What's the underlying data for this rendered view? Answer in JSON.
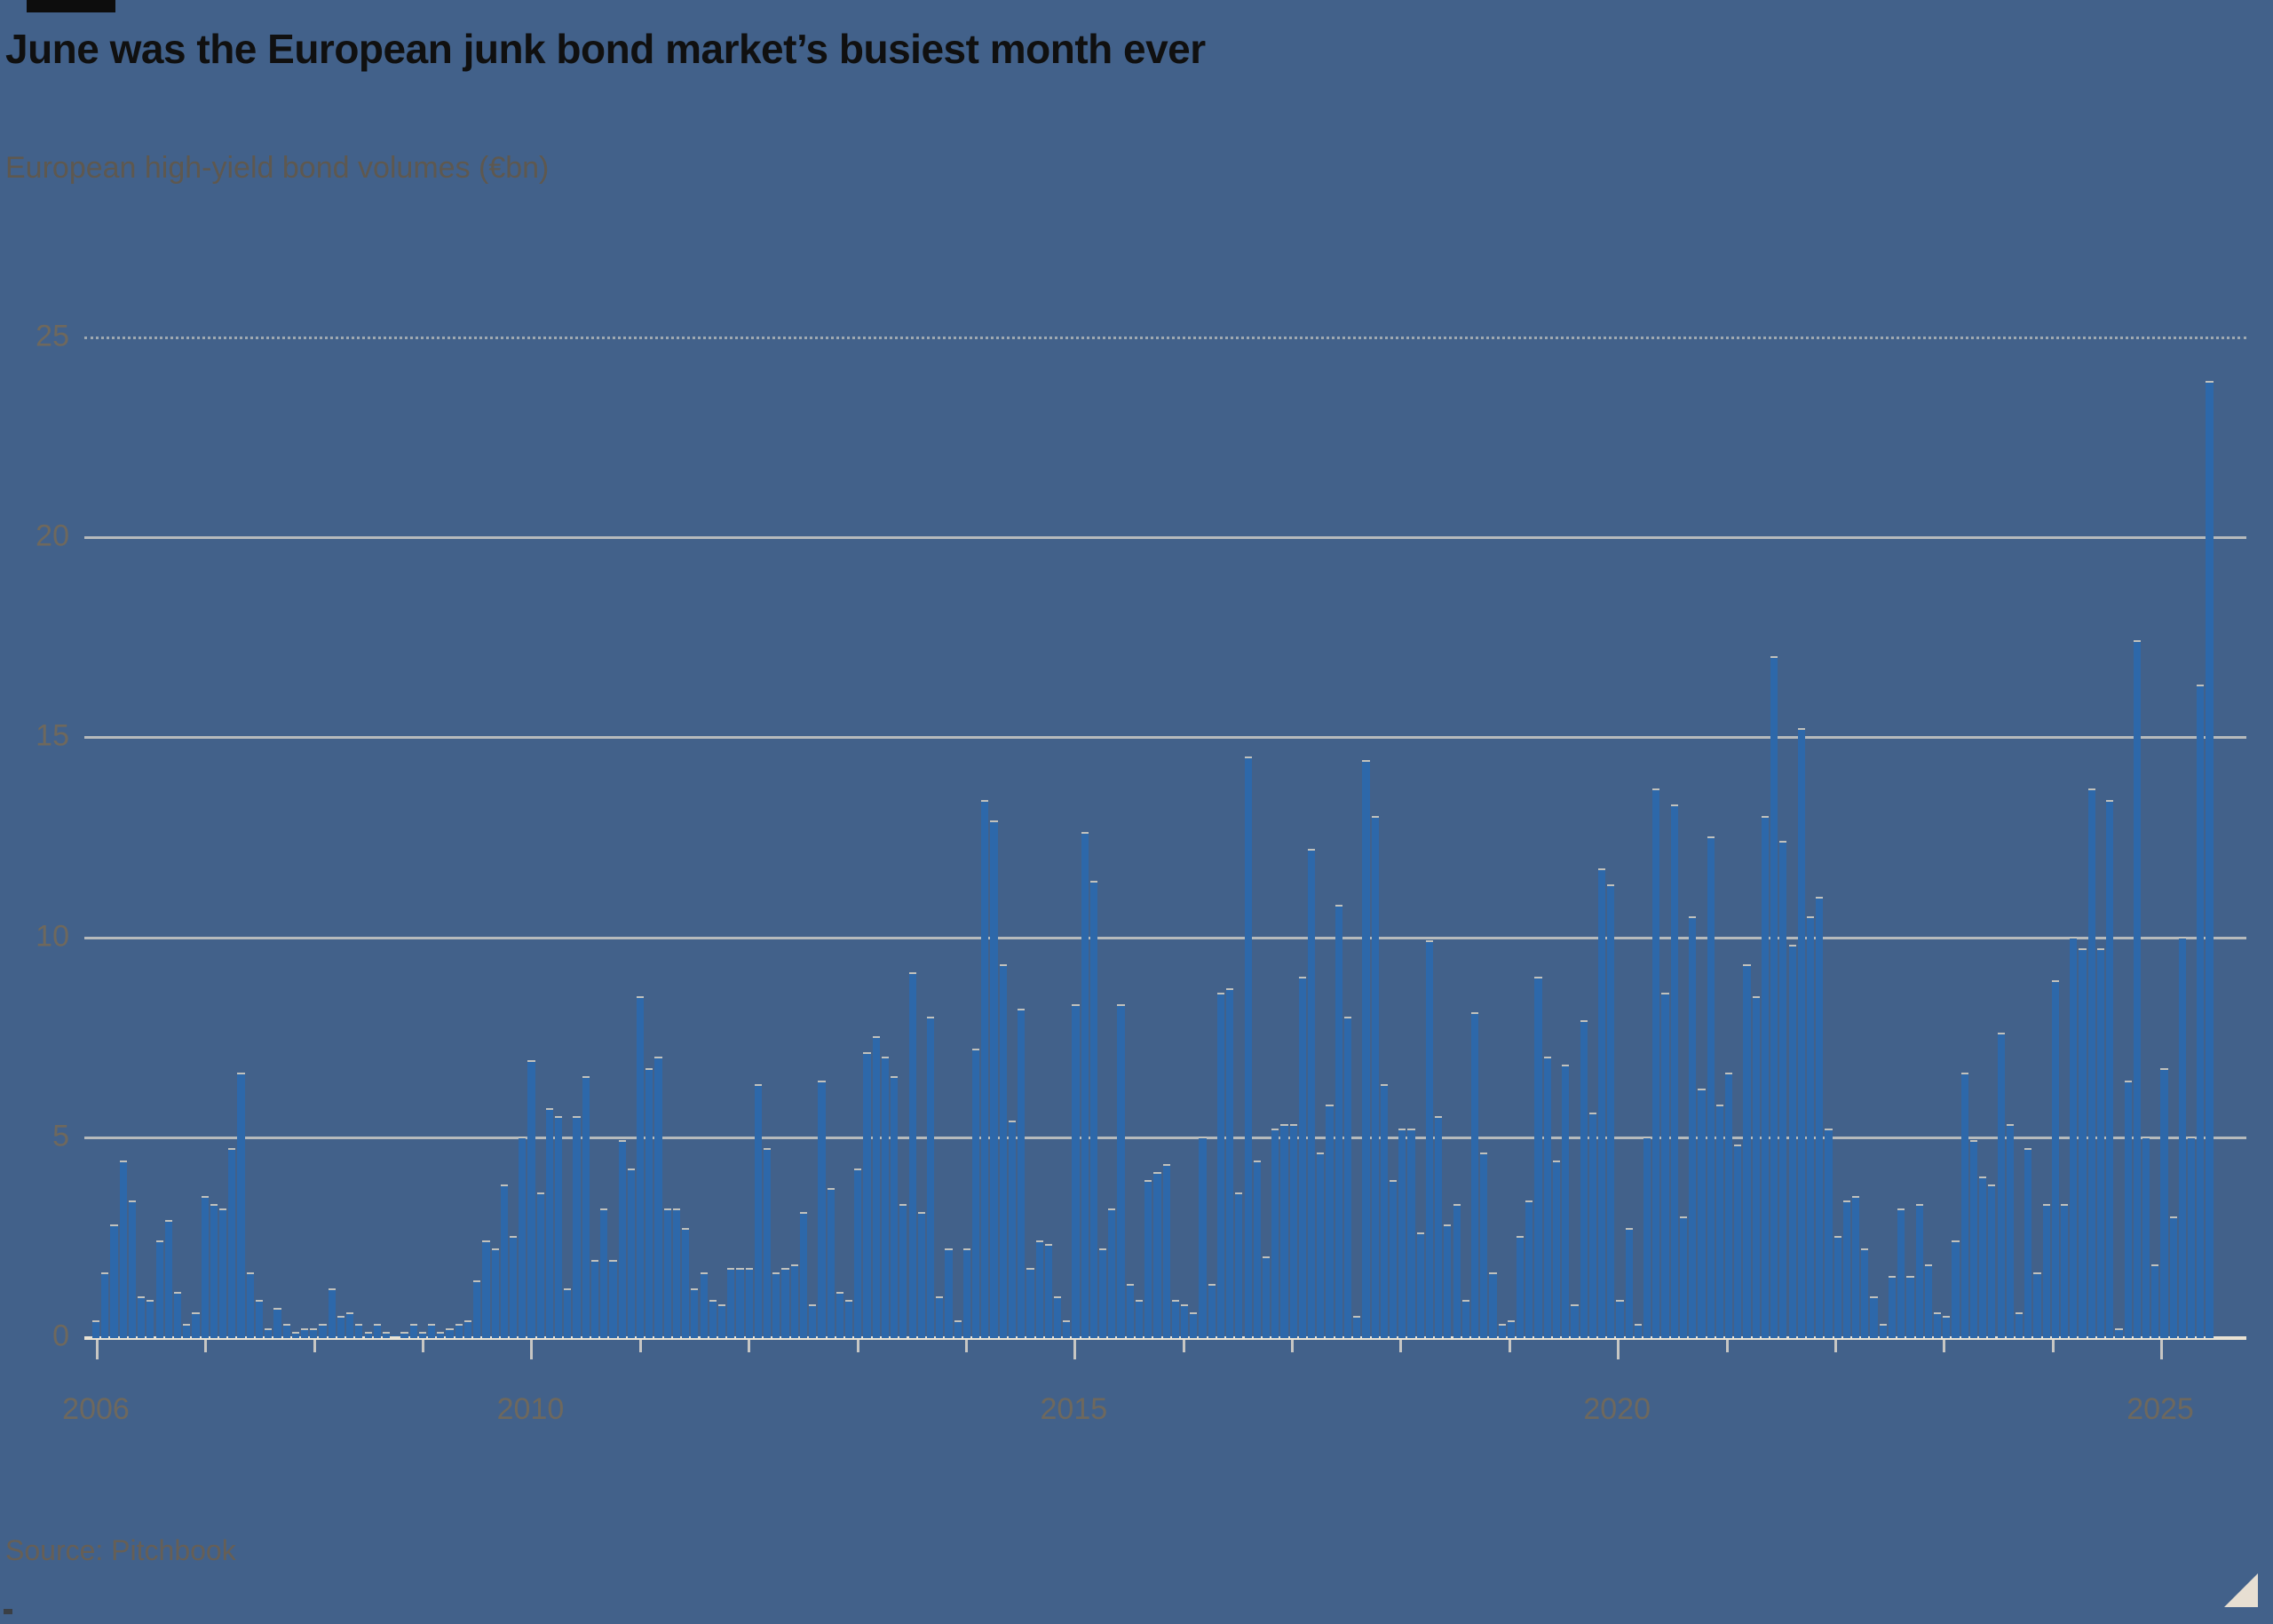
{
  "header": {
    "black_tag": "",
    "title": "June was the European junk bond market’s busiest month ever",
    "subtitle": "European high-yield bond volumes (€bn)"
  },
  "source": {
    "label": "Source: Pitchbook"
  },
  "colors": {
    "background": "#42618A",
    "bar": "#2D68AA",
    "bar_cap": "#D1CBBE",
    "gridline": "#DED8CC",
    "axis_line": "#E9E2D3",
    "title": "#101010",
    "subtitle": "#5E584F",
    "tick_label": "#6E685D",
    "source": "#665F56",
    "resize_corner": "#E7DFD2",
    "tag": "#0D0D0D"
  },
  "chart_data": {
    "type": "bar",
    "title": "June was the European junk bond market’s busiest month ever",
    "subtitle": "European high-yield bond volumes (€bn)",
    "unit": "€bn",
    "ylabel": "European high-yield bond volumes (€bn)",
    "xlabel": "",
    "ylim": [
      0,
      25
    ],
    "y_tick_values": [
      0,
      5,
      10,
      15,
      20,
      25
    ],
    "x_tick_years_labeled": [
      2006,
      2010,
      2015,
      2020,
      2025
    ],
    "x_range": {
      "start": "2006-01",
      "end": "2025-06"
    },
    "grid": true,
    "legend": "none",
    "series": [
      {
        "name": "European high-yield bond volumes (€bn)",
        "years": [
          {
            "year": 2006,
            "values": [
              0.4,
              1.6,
              2.8,
              4.4,
              3.4,
              1.0,
              0.9,
              2.4,
              2.9,
              1.1,
              0.3,
              0.6
            ]
          },
          {
            "year": 2007,
            "values": [
              3.5,
              3.3,
              3.2,
              4.7,
              6.6,
              1.6,
              0.9,
              0.2,
              0.7,
              0.3,
              0.1,
              0.2
            ]
          },
          {
            "year": 2008,
            "values": [
              0.2,
              0.3,
              1.2,
              0.5,
              0.6,
              0.3,
              0.1,
              0.3,
              0.1,
              0.0,
              0.1,
              0.3
            ]
          },
          {
            "year": 2009,
            "values": [
              0.1,
              0.3,
              0.1,
              0.2,
              0.3,
              0.4,
              1.4,
              2.4,
              2.2,
              3.8,
              2.5,
              5.0
            ]
          },
          {
            "year": 2010,
            "values": [
              6.9,
              3.6,
              5.7,
              5.5,
              1.2,
              5.5,
              6.5,
              1.9,
              3.2,
              1.9,
              4.9,
              4.2
            ]
          },
          {
            "year": 2011,
            "values": [
              8.5,
              6.7,
              7.0,
              3.2,
              3.2,
              2.7,
              1.2,
              1.6,
              0.9,
              0.8,
              1.7,
              1.7
            ]
          },
          {
            "year": 2012,
            "values": [
              1.7,
              6.3,
              4.7,
              1.6,
              1.7,
              1.8,
              3.1,
              0.8,
              6.4,
              3.7,
              1.1,
              0.9
            ]
          },
          {
            "year": 2013,
            "values": [
              4.2,
              7.1,
              7.5,
              7.0,
              6.5,
              3.3,
              9.1,
              3.1,
              8.0,
              1.0,
              2.2,
              0.4
            ]
          },
          {
            "year": 2014,
            "values": [
              2.2,
              7.2,
              13.4,
              12.9,
              9.3,
              5.4,
              8.2,
              1.7,
              2.4,
              2.3,
              1.0,
              0.4
            ]
          },
          {
            "year": 2015,
            "values": [
              8.3,
              12.6,
              11.4,
              2.2,
              3.2,
              8.3,
              1.3,
              0.9,
              3.9,
              4.1,
              4.3,
              0.9
            ]
          },
          {
            "year": 2016,
            "values": [
              0.8,
              0.6,
              5.0,
              1.3,
              8.6,
              8.7,
              3.6,
              14.5,
              4.4,
              2.0,
              5.2,
              5.3
            ]
          },
          {
            "year": 2017,
            "values": [
              5.3,
              9.0,
              12.2,
              4.6,
              5.8,
              10.8,
              8.0,
              0.5,
              14.4,
              13.0,
              6.3,
              3.9
            ]
          },
          {
            "year": 2018,
            "values": [
              5.2,
              5.2,
              2.6,
              9.9,
              5.5,
              2.8,
              3.3,
              0.9,
              8.1,
              4.6,
              1.6,
              0.3
            ]
          },
          {
            "year": 2019,
            "values": [
              0.4,
              2.5,
              3.4,
              9.0,
              7.0,
              4.4,
              6.8,
              0.8,
              7.9,
              5.6,
              11.7,
              11.3
            ]
          },
          {
            "year": 2020,
            "values": [
              0.9,
              2.7,
              0.3,
              5.0,
              13.7,
              8.6,
              13.3,
              3.0,
              10.5,
              6.2,
              12.5,
              5.8
            ]
          },
          {
            "year": 2021,
            "values": [
              6.6,
              4.8,
              9.3,
              8.5,
              13.0,
              17.0,
              12.4,
              9.8,
              15.2,
              10.5,
              11.0,
              5.2
            ]
          },
          {
            "year": 2022,
            "values": [
              2.5,
              3.4,
              3.5,
              2.2,
              1.0,
              0.3,
              1.5,
              3.2,
              1.5,
              3.3,
              1.8,
              0.6
            ]
          },
          {
            "year": 2023,
            "values": [
              0.5,
              2.4,
              6.6,
              4.9,
              4.0,
              3.8,
              7.6,
              5.3,
              0.6,
              4.7,
              1.6,
              3.3
            ]
          },
          {
            "year": 2024,
            "values": [
              8.9,
              3.3,
              10.0,
              9.7,
              13.7,
              9.7,
              13.4,
              0.2,
              6.4,
              17.4,
              5.0,
              1.8
            ]
          },
          {
            "year": 2025,
            "values": [
              6.7,
              3.0,
              10.0,
              5.0,
              16.3,
              23.9
            ]
          }
        ]
      }
    ]
  }
}
